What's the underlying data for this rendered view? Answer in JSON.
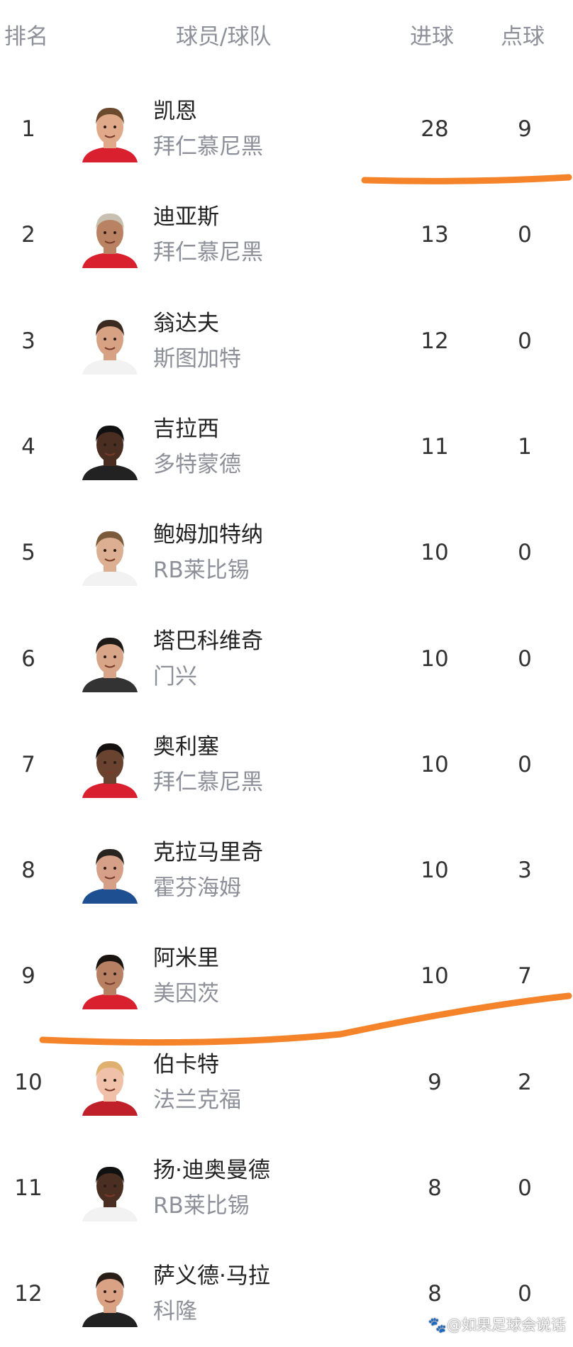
{
  "header": {
    "rank": "排名",
    "player_team": "球员/球队",
    "goals": "进球",
    "penalties": "点球"
  },
  "rows": [
    {
      "rank": "1",
      "name": "凯恩",
      "team": "拜仁慕尼黑",
      "goals": "28",
      "penalties": "9",
      "jersey": "#d8202f",
      "skin": "#e0a98a",
      "hair": "#6b4a2e"
    },
    {
      "rank": "2",
      "name": "迪亚斯",
      "team": "拜仁慕尼黑",
      "goals": "13",
      "penalties": "0",
      "jersey": "#d8202f",
      "skin": "#b98363",
      "hair": "#c8c0b0"
    },
    {
      "rank": "3",
      "name": "翁达夫",
      "team": "斯图加特",
      "goals": "12",
      "penalties": "0",
      "jersey": "#f2f2f2",
      "skin": "#d7a184",
      "hair": "#3a2a20"
    },
    {
      "rank": "4",
      "name": "吉拉西",
      "team": "多特蒙德",
      "goals": "11",
      "penalties": "1",
      "jersey": "#222222",
      "skin": "#4a2e22",
      "hair": "#111111"
    },
    {
      "rank": "5",
      "name": "鲍姆加特纳",
      "team": "RB莱比锡",
      "goals": "10",
      "penalties": "0",
      "jersey": "#f2f2f2",
      "skin": "#dcae92",
      "hair": "#7a5a3a"
    },
    {
      "rank": "6",
      "name": "塔巴科维奇",
      "team": "门兴",
      "goals": "10",
      "penalties": "0",
      "jersey": "#333333",
      "skin": "#d9a588",
      "hair": "#1e1a18"
    },
    {
      "rank": "7",
      "name": "奥利塞",
      "team": "拜仁慕尼黑",
      "goals": "10",
      "penalties": "0",
      "jersey": "#d8202f",
      "skin": "#6a4230",
      "hair": "#151010"
    },
    {
      "rank": "8",
      "name": "克拉马里奇",
      "team": "霍芬海姆",
      "goals": "10",
      "penalties": "3",
      "jersey": "#1d4f91",
      "skin": "#d6a088",
      "hair": "#2a2420"
    },
    {
      "rank": "9",
      "name": "阿米里",
      "team": "美因茨",
      "goals": "10",
      "penalties": "7",
      "jersey": "#d8202f",
      "skin": "#b88062",
      "hair": "#1a1410"
    },
    {
      "rank": "10",
      "name": "伯卡特",
      "team": "法兰克福",
      "goals": "9",
      "penalties": "2",
      "jersey": "#c0202a",
      "skin": "#f0c0a8",
      "hair": "#e0b070"
    },
    {
      "rank": "11",
      "name": "扬·迪奥曼德",
      "team": "RB莱比锡",
      "goals": "8",
      "penalties": "0",
      "jersey": "#f2f2f2",
      "skin": "#4a2e22",
      "hair": "#111111"
    },
    {
      "rank": "12",
      "name": "萨义德·马拉",
      "team": "科隆",
      "goals": "8",
      "penalties": "0",
      "jersey": "#222222",
      "skin": "#d9a285",
      "hair": "#2a1e18"
    }
  ],
  "watermark": "@如果足球会说话",
  "colors": {
    "annotation": "#f5832a",
    "muted_text": "#8e9099",
    "text": "#222222"
  }
}
